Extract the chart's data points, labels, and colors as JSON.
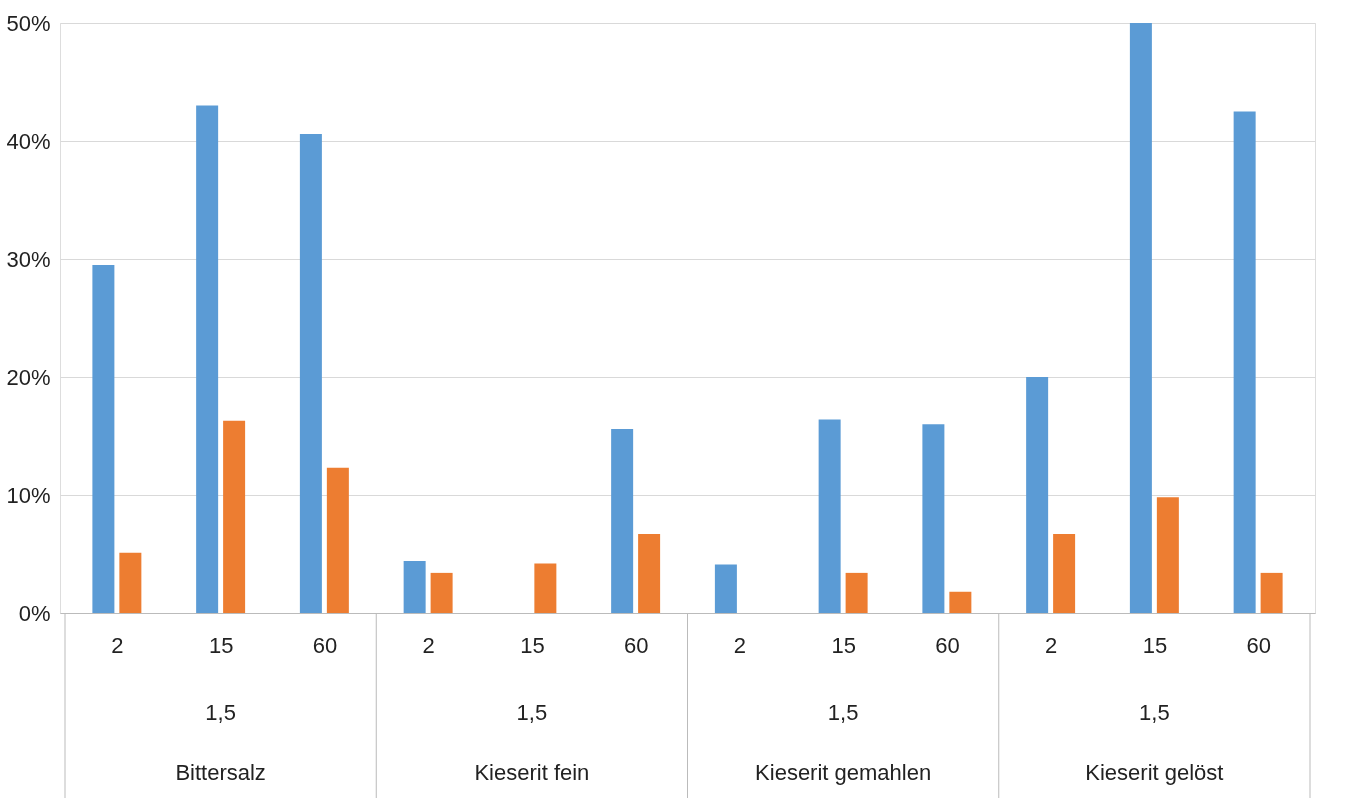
{
  "chart_data": {
    "type": "bar",
    "categories": [
      "2",
      "15",
      "60",
      "2",
      "15",
      "60",
      "2",
      "15",
      "60",
      "2",
      "15",
      "60"
    ],
    "series": [
      {
        "color": "#5b9bd5",
        "values": [
          29.5,
          43.0,
          40.6,
          4.4,
          null,
          15.6,
          4.1,
          16.4,
          16.0,
          20.0,
          50.0,
          42.5
        ]
      },
      {
        "color": "#ed7d31",
        "values": [
          5.1,
          16.3,
          12.3,
          3.4,
          4.2,
          6.7,
          null,
          3.4,
          1.8,
          6.7,
          9.8,
          3.4
        ]
      }
    ],
    "annotations": [
      "1,5",
      "1,5",
      "1,5",
      "1,5",
      "Bittersalz",
      "Kieserit fein",
      "Kieserit gemahlen",
      "Kieserit gelöst"
    ],
    "ylim": [
      0,
      50
    ],
    "yticks": [
      {
        "value": 0,
        "label": "0%"
      },
      {
        "value": 10,
        "label": "10%"
      },
      {
        "value": 20,
        "label": "20%"
      },
      {
        "value": 30,
        "label": "30%"
      },
      {
        "value": 40,
        "label": "40%"
      },
      {
        "value": 50,
        "label": "50%"
      }
    ],
    "grid": "y"
  }
}
